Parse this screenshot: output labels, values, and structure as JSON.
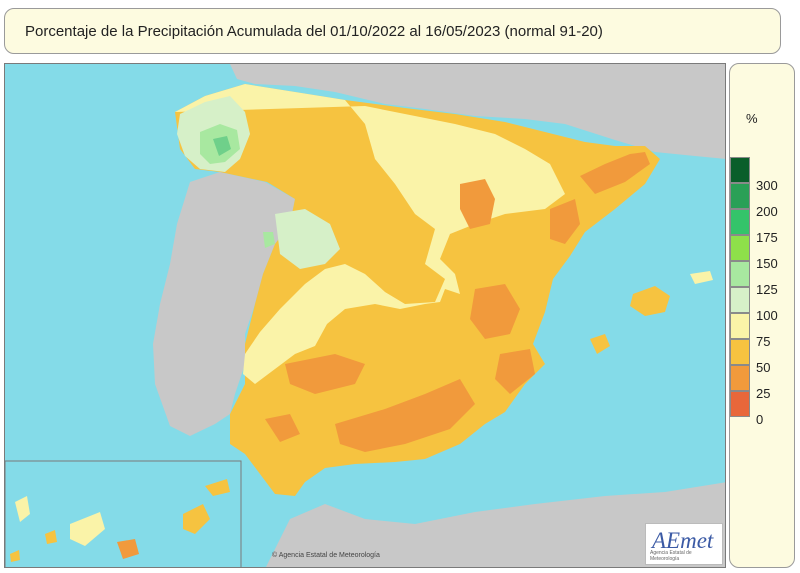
{
  "title": "Porcentaje de la Precipitación Acumulada del 01/10/2022 al 16/05/2023 (normal 91-20)",
  "legend": {
    "unit": "%",
    "classes": [
      {
        "label": "300",
        "color": "#0a5e2a"
      },
      {
        "label": "200",
        "color": "#2aa056"
      },
      {
        "label": "175",
        "color": "#34c46a"
      },
      {
        "label": "150",
        "color": "#8ee04a"
      },
      {
        "label": "125",
        "color": "#a8e8a0"
      },
      {
        "label": "100",
        "color": "#d6f0c8"
      },
      {
        "label": "75",
        "color": "#faf3a8"
      },
      {
        "label": "50",
        "color": "#f6c340"
      },
      {
        "label": "25",
        "color": "#f19a3c"
      },
      {
        "label": "0",
        "color": "#e8673a"
      }
    ],
    "bottom_color": "#e8673a"
  },
  "credit": "© Agencia Estatal de Meteorología",
  "logo": {
    "text": "AEmet",
    "subtitle": "Agencia Estatal de Meteorología"
  }
}
